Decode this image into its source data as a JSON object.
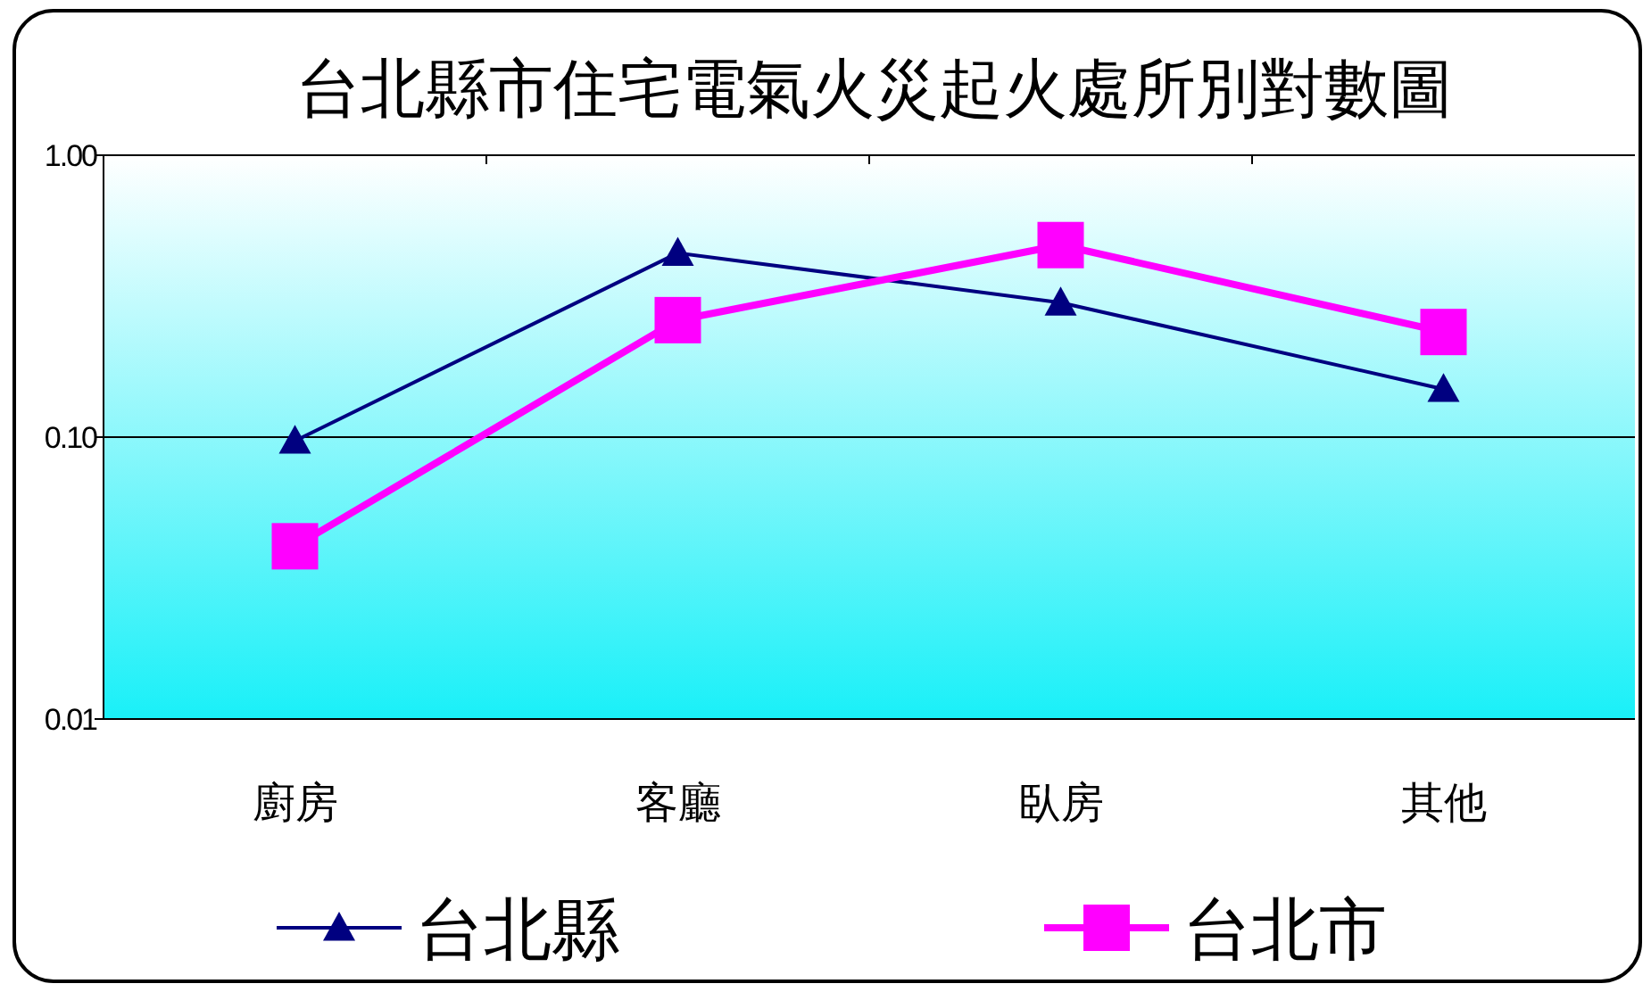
{
  "chart_data": {
    "type": "line",
    "title": "台北縣市住宅電氣火災起火處所別對數圖",
    "categories": [
      "廚房",
      "客廳",
      "臥房",
      "其他"
    ],
    "series": [
      {
        "name": "台北縣",
        "color": "#000080",
        "marker": "triangle",
        "values": [
          0.097,
          0.45,
          0.3,
          0.148
        ]
      },
      {
        "name": "台北市",
        "color": "#ff00ff",
        "marker": "square",
        "values": [
          0.041,
          0.26,
          0.48,
          0.236
        ]
      }
    ],
    "log": true,
    "ylim": [
      0.01,
      1
    ],
    "yticks": [
      {
        "value": 0.01,
        "label": "0.01"
      },
      {
        "value": 0.1,
        "label": "0.10"
      },
      {
        "value": 1,
        "label": "1.00"
      }
    ],
    "grid": "y",
    "legend": "bottom"
  }
}
